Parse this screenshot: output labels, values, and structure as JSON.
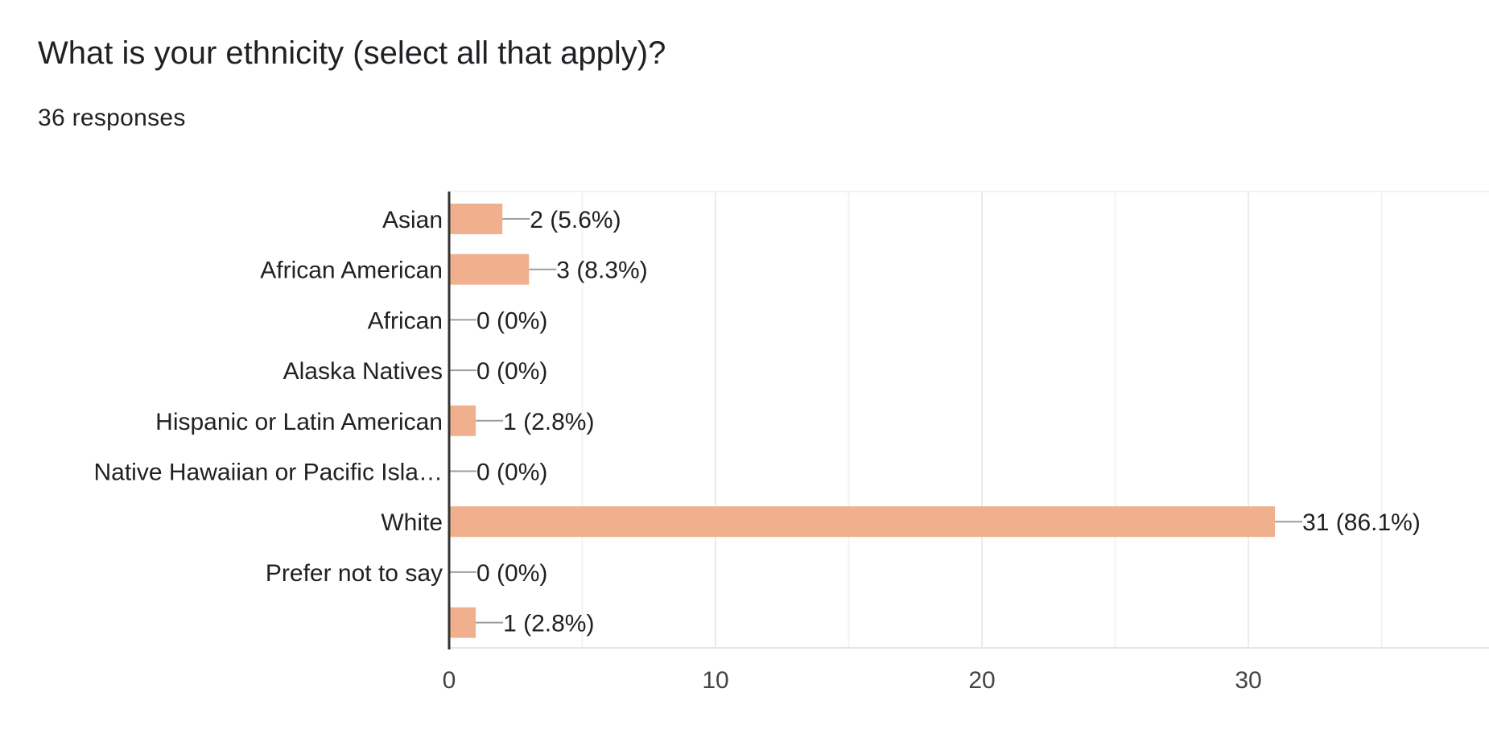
{
  "question": {
    "title": "What is your ethnicity (select all that apply)?",
    "responses": "36 responses"
  },
  "chart_data": {
    "type": "bar",
    "orientation": "horizontal",
    "categories": [
      "Asian",
      "African American",
      "African",
      "Alaska Natives",
      "Hispanic or Latin American",
      "Native Hawaiian or Pacific Isla…",
      "White",
      "Prefer not to say",
      ""
    ],
    "values": [
      2,
      3,
      0,
      0,
      1,
      0,
      31,
      0,
      1
    ],
    "value_labels": [
      "2 (5.6%)",
      "3 (8.3%)",
      "0 (0%)",
      "0 (0%)",
      "1 (2.8%)",
      "0 (0%)",
      "31 (86.1%)",
      "0 (0%)",
      "1 (2.8%)"
    ],
    "xlim": [
      0,
      39
    ],
    "major_ticks": [
      0,
      10,
      20,
      30
    ],
    "minor_gridlines": [
      5,
      15,
      25,
      35
    ],
    "tick_labels": [
      "0",
      "10",
      "20",
      "30"
    ],
    "grid": true,
    "bar_color": "#f0b08e",
    "leader_color": "#9e9e9e",
    "axis_color": "#333333",
    "grid_color": "#ebebeb"
  }
}
